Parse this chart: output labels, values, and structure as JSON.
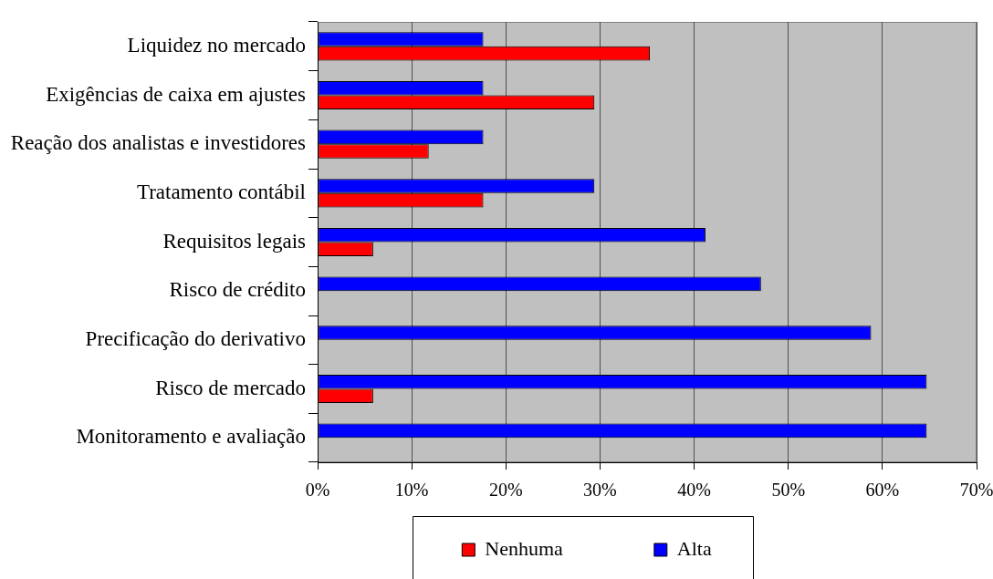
{
  "chart_data": {
    "type": "bar",
    "orientation": "horizontal",
    "categories": [
      "Liquidez no mercado",
      "Exigências de caixa em ajustes",
      "Reação dos analistas e investidores",
      "Tratamento contábil",
      "Requisitos legais",
      "Risco de crédito",
      "Precificação do derivativo",
      "Risco de mercado",
      "Monitoramento e avaliação"
    ],
    "series": [
      {
        "name": "Nenhuma",
        "color": "#ff0000",
        "values": [
          35.3,
          29.4,
          11.8,
          17.6,
          5.9,
          0,
          0,
          5.9,
          0
        ]
      },
      {
        "name": "Alta",
        "color": "#0000ff",
        "values": [
          17.6,
          17.6,
          17.6,
          29.4,
          41.2,
          47.1,
          58.8,
          64.7,
          64.7
        ]
      }
    ],
    "xlim": [
      0,
      70
    ],
    "xticks": [
      {
        "value": 0,
        "label": "0%"
      },
      {
        "value": 10,
        "label": "10%"
      },
      {
        "value": 20,
        "label": "20%"
      },
      {
        "value": 30,
        "label": "30%"
      },
      {
        "value": 40,
        "label": "40%"
      },
      {
        "value": 50,
        "label": "50%"
      },
      {
        "value": 60,
        "label": "60%"
      },
      {
        "value": 70,
        "label": "70%"
      }
    ],
    "grid": "x",
    "legend": "bottom"
  }
}
